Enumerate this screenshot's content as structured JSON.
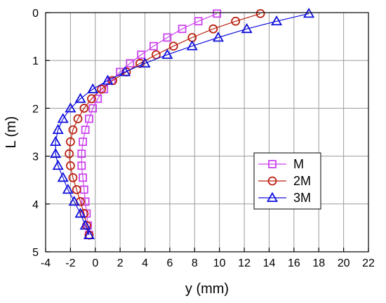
{
  "chart_data": {
    "type": "line",
    "title": "",
    "xlabel": "y (mm)",
    "ylabel": "L (m)",
    "xlim": [
      -4,
      22
    ],
    "ylim": [
      0,
      5
    ],
    "y_inverted": true,
    "x_axis_position": "top",
    "grid": true,
    "xticks": [
      -4,
      -2,
      0,
      2,
      4,
      6,
      8,
      10,
      12,
      14,
      16,
      18,
      20,
      22
    ],
    "yticks": [
      0,
      1,
      2,
      3,
      4,
      5
    ],
    "legend_position": "right",
    "series": [
      {
        "name": "M",
        "marker": "square",
        "color": "#cc44ee",
        "points": [
          [
            9.8,
            0.02
          ],
          [
            8.3,
            0.18
          ],
          [
            7.0,
            0.34
          ],
          [
            5.8,
            0.52
          ],
          [
            4.7,
            0.7
          ],
          [
            3.7,
            0.88
          ],
          [
            2.8,
            1.06
          ],
          [
            2.0,
            1.24
          ],
          [
            1.3,
            1.42
          ],
          [
            0.7,
            1.6
          ],
          [
            0.2,
            1.8
          ],
          [
            -0.2,
            2.0
          ],
          [
            -0.5,
            2.22
          ],
          [
            -0.8,
            2.45
          ],
          [
            -1.0,
            2.7
          ],
          [
            -1.1,
            2.95
          ],
          [
            -1.1,
            3.2
          ],
          [
            -1.0,
            3.45
          ],
          [
            -0.9,
            3.7
          ],
          [
            -0.8,
            3.95
          ],
          [
            -0.7,
            4.2
          ],
          [
            -0.6,
            4.45
          ],
          [
            -0.5,
            4.65
          ]
        ]
      },
      {
        "name": "2M",
        "marker": "circle",
        "color": "#bb2211",
        "points": [
          [
            13.3,
            0.02
          ],
          [
            11.3,
            0.18
          ],
          [
            9.5,
            0.34
          ],
          [
            7.8,
            0.52
          ],
          [
            6.3,
            0.7
          ],
          [
            4.9,
            0.88
          ],
          [
            3.6,
            1.06
          ],
          [
            2.5,
            1.24
          ],
          [
            1.4,
            1.42
          ],
          [
            0.5,
            1.6
          ],
          [
            -0.3,
            1.8
          ],
          [
            -0.9,
            2.0
          ],
          [
            -1.4,
            2.22
          ],
          [
            -1.8,
            2.45
          ],
          [
            -2.0,
            2.7
          ],
          [
            -2.1,
            2.95
          ],
          [
            -2.0,
            3.2
          ],
          [
            -1.8,
            3.45
          ],
          [
            -1.5,
            3.7
          ],
          [
            -1.2,
            3.95
          ],
          [
            -0.9,
            4.2
          ],
          [
            -0.7,
            4.45
          ],
          [
            -0.5,
            4.65
          ]
        ]
      },
      {
        "name": "3M",
        "marker": "triangle",
        "color": "#1111dd",
        "points": [
          [
            17.2,
            0.02
          ],
          [
            14.6,
            0.18
          ],
          [
            12.2,
            0.34
          ],
          [
            9.9,
            0.52
          ],
          [
            7.8,
            0.7
          ],
          [
            5.8,
            0.88
          ],
          [
            4.0,
            1.06
          ],
          [
            2.4,
            1.24
          ],
          [
            1.0,
            1.42
          ],
          [
            -0.2,
            1.6
          ],
          [
            -1.2,
            1.8
          ],
          [
            -2.0,
            2.0
          ],
          [
            -2.6,
            2.22
          ],
          [
            -3.0,
            2.45
          ],
          [
            -3.2,
            2.7
          ],
          [
            -3.2,
            2.95
          ],
          [
            -3.0,
            3.2
          ],
          [
            -2.6,
            3.45
          ],
          [
            -2.2,
            3.7
          ],
          [
            -1.7,
            3.95
          ],
          [
            -1.2,
            4.2
          ],
          [
            -0.8,
            4.45
          ],
          [
            -0.5,
            4.65
          ]
        ]
      }
    ]
  }
}
